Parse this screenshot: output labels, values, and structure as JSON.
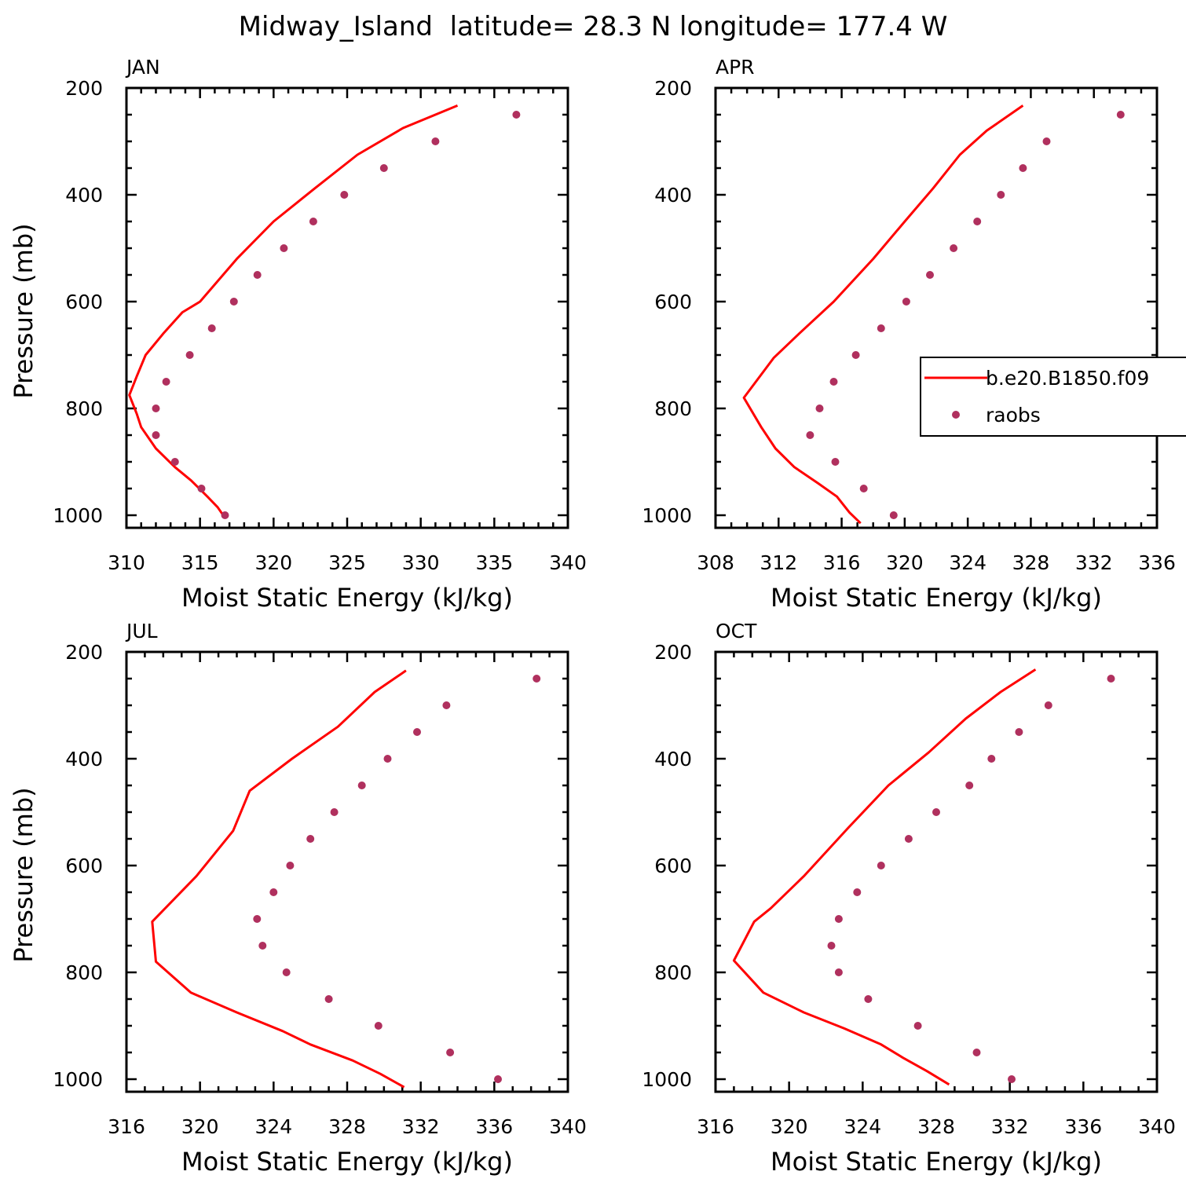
{
  "figure": {
    "title": "Midway_Island  latitude= 28.3 N longitude= 177.4 W"
  },
  "legend": {
    "model_label": "b.e20.B1850.f09",
    "obs_label": "raobs",
    "model_color": "#ff0000",
    "obs_color": "#b0305e"
  },
  "chart_data": [
    {
      "type": "line",
      "label": "JAN",
      "xlabel": "Moist Static Energy (kJ/kg)",
      "ylabel": "Pressure (mb)",
      "xlim": [
        310,
        340
      ],
      "ylim": [
        200,
        1025
      ],
      "y_reversed": true,
      "xticks": [
        "310",
        "315",
        "320",
        "325",
        "330",
        "335",
        "340"
      ],
      "yticks": [
        "200",
        "400",
        "600",
        "800",
        "1000"
      ],
      "series": [
        {
          "name": "b.e20.B1850.f09",
          "style": "line",
          "points": [
            [
              332.5,
              233
            ],
            [
              328.8,
              275
            ],
            [
              325.7,
              325
            ],
            [
              322.8,
              388
            ],
            [
              320.0,
              450
            ],
            [
              317.5,
              520
            ],
            [
              315.0,
              600
            ],
            [
              313.8,
              620
            ],
            [
              312.5,
              660
            ],
            [
              311.3,
              700
            ],
            [
              310.7,
              740
            ],
            [
              310.2,
              775
            ],
            [
              310.7,
              810
            ],
            [
              311.0,
              835
            ],
            [
              312.0,
              875
            ],
            [
              313.3,
              910
            ],
            [
              314.4,
              935
            ],
            [
              315.5,
              965
            ],
            [
              316.2,
              985
            ],
            [
              316.7,
              1005
            ]
          ]
        },
        {
          "name": "raobs",
          "style": "scatter",
          "points": [
            [
              336.5,
              250
            ],
            [
              331.0,
              300
            ],
            [
              327.5,
              350
            ],
            [
              324.8,
              400
            ],
            [
              322.7,
              450
            ],
            [
              320.7,
              500
            ],
            [
              318.9,
              550
            ],
            [
              317.3,
              600
            ],
            [
              315.8,
              650
            ],
            [
              314.3,
              700
            ],
            [
              312.7,
              750
            ],
            [
              312.0,
              800
            ],
            [
              312.0,
              850
            ],
            [
              313.3,
              900
            ],
            [
              315.1,
              950
            ],
            [
              316.7,
              1000
            ]
          ]
        }
      ]
    },
    {
      "type": "line",
      "label": "APR",
      "xlabel": "Moist Static Energy (kJ/kg)",
      "ylabel": "",
      "xlim": [
        308,
        336
      ],
      "ylim": [
        200,
        1025
      ],
      "y_reversed": true,
      "xticks": [
        "308",
        "312",
        "316",
        "320",
        "324",
        "328",
        "332",
        "336"
      ],
      "yticks": [
        "200",
        "400",
        "600",
        "800",
        "1000"
      ],
      "series": [
        {
          "name": "b.e20.B1850.f09",
          "style": "line",
          "points": [
            [
              327.5,
              233
            ],
            [
              325.2,
              280
            ],
            [
              323.5,
              325
            ],
            [
              321.8,
              388
            ],
            [
              320.0,
              450
            ],
            [
              318.0,
              520
            ],
            [
              315.5,
              600
            ],
            [
              313.3,
              660
            ],
            [
              311.7,
              705
            ],
            [
              309.8,
              780
            ],
            [
              310.9,
              835
            ],
            [
              311.8,
              875
            ],
            [
              313.0,
              910
            ],
            [
              314.5,
              940
            ],
            [
              315.7,
              965
            ],
            [
              316.5,
              995
            ],
            [
              317.2,
              1015
            ]
          ]
        },
        {
          "name": "raobs",
          "style": "scatter",
          "points": [
            [
              333.7,
              250
            ],
            [
              329.0,
              300
            ],
            [
              327.5,
              350
            ],
            [
              326.1,
              400
            ],
            [
              324.6,
              450
            ],
            [
              323.1,
              500
            ],
            [
              321.6,
              550
            ],
            [
              320.1,
              600
            ],
            [
              318.5,
              650
            ],
            [
              316.9,
              700
            ],
            [
              315.5,
              750
            ],
            [
              314.6,
              800
            ],
            [
              314.0,
              850
            ],
            [
              315.6,
              900
            ],
            [
              317.4,
              950
            ],
            [
              319.3,
              1000
            ]
          ]
        }
      ]
    },
    {
      "type": "line",
      "label": "JUL",
      "xlabel": "Moist Static Energy (kJ/kg)",
      "ylabel": "Pressure (mb)",
      "xlim": [
        316,
        340
      ],
      "ylim": [
        200,
        1025
      ],
      "y_reversed": true,
      "xticks": [
        "316",
        "320",
        "324",
        "328",
        "332",
        "336",
        "340"
      ],
      "yticks": [
        "200",
        "400",
        "600",
        "800",
        "1000"
      ],
      "series": [
        {
          "name": "b.e20.B1850.f09",
          "style": "line",
          "points": [
            [
              331.2,
              235
            ],
            [
              329.5,
              275
            ],
            [
              327.5,
              340
            ],
            [
              325.0,
              400
            ],
            [
              322.7,
              460
            ],
            [
              321.8,
              535
            ],
            [
              319.8,
              620
            ],
            [
              317.4,
              705
            ],
            [
              317.6,
              780
            ],
            [
              319.5,
              838
            ],
            [
              322.0,
              875
            ],
            [
              324.5,
              910
            ],
            [
              326.0,
              935
            ],
            [
              328.3,
              965
            ],
            [
              329.8,
              990
            ],
            [
              331.1,
              1015
            ]
          ]
        },
        {
          "name": "raobs",
          "style": "scatter",
          "points": [
            [
              338.3,
              250
            ],
            [
              333.4,
              300
            ],
            [
              331.8,
              350
            ],
            [
              330.2,
              400
            ],
            [
              328.8,
              450
            ],
            [
              327.3,
              500
            ],
            [
              326.0,
              550
            ],
            [
              324.9,
              600
            ],
            [
              324.0,
              650
            ],
            [
              323.1,
              700
            ],
            [
              323.4,
              750
            ],
            [
              324.7,
              800
            ],
            [
              327.0,
              850
            ],
            [
              329.7,
              900
            ],
            [
              333.6,
              950
            ],
            [
              336.2,
              1000
            ]
          ]
        }
      ]
    },
    {
      "type": "line",
      "label": "OCT",
      "xlabel": "Moist Static Energy (kJ/kg)",
      "ylabel": "",
      "xlim": [
        316,
        340
      ],
      "ylim": [
        200,
        1025
      ],
      "y_reversed": true,
      "xticks": [
        "316",
        "320",
        "324",
        "328",
        "332",
        "336",
        "340"
      ],
      "yticks": [
        "200",
        "400",
        "600",
        "800",
        "1000"
      ],
      "series": [
        {
          "name": "b.e20.B1850.f09",
          "style": "line",
          "points": [
            [
              333.4,
              233
            ],
            [
              331.5,
              275
            ],
            [
              329.6,
              325
            ],
            [
              327.6,
              388
            ],
            [
              325.4,
              450
            ],
            [
              323.2,
              530
            ],
            [
              320.8,
              620
            ],
            [
              319.0,
              680
            ],
            [
              318.1,
              705
            ],
            [
              317.0,
              778
            ],
            [
              318.6,
              838
            ],
            [
              320.8,
              875
            ],
            [
              323.0,
              905
            ],
            [
              325.0,
              935
            ],
            [
              326.2,
              960
            ],
            [
              327.5,
              985
            ],
            [
              328.7,
              1010
            ]
          ]
        },
        {
          "name": "raobs",
          "style": "scatter",
          "points": [
            [
              337.5,
              250
            ],
            [
              334.1,
              300
            ],
            [
              332.5,
              350
            ],
            [
              331.0,
              400
            ],
            [
              329.8,
              450
            ],
            [
              328.0,
              500
            ],
            [
              326.5,
              550
            ],
            [
              325.0,
              600
            ],
            [
              323.7,
              650
            ],
            [
              322.7,
              700
            ],
            [
              322.3,
              750
            ],
            [
              322.7,
              800
            ],
            [
              324.3,
              850
            ],
            [
              327.0,
              900
            ],
            [
              330.2,
              950
            ],
            [
              332.1,
              1000
            ]
          ]
        }
      ]
    }
  ]
}
